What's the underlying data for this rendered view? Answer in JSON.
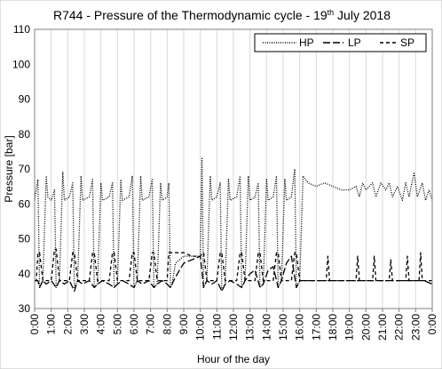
{
  "chart_data": {
    "type": "line",
    "title": "R744 - Pressure of the Thermodynamic cycle - 19",
    "title_superscript": "th",
    "title_suffix": " July 2018",
    "xlabel": "Hour of the day",
    "ylabel": "Pressure [bar]",
    "ylim": [
      30,
      110
    ],
    "xlim": [
      0,
      24
    ],
    "y_ticks": [
      30,
      40,
      50,
      60,
      70,
      80,
      90,
      100,
      110
    ],
    "x_ticks": [
      "0:00",
      "1:00",
      "2:00",
      "3:00",
      "4:00",
      "5:00",
      "6:00",
      "7:00",
      "8:00",
      "9:00",
      "10:00",
      "11:00",
      "12:00",
      "13:00",
      "14:00",
      "15:00",
      "16:00",
      "17:00",
      "18:00",
      "19:00",
      "20:00",
      "21:00",
      "22:00",
      "23:00",
      "0:00"
    ],
    "grid": "vertical",
    "legend_position": "top-right",
    "series": [
      {
        "name": "HP",
        "style": "dotted",
        "values": [
          [
            0.0,
            61
          ],
          [
            0.2,
            67
          ],
          [
            0.3,
            36
          ],
          [
            0.5,
            38
          ],
          [
            0.7,
            68
          ],
          [
            0.8,
            62
          ],
          [
            1.0,
            61
          ],
          [
            1.2,
            64
          ],
          [
            1.3,
            36
          ],
          [
            1.5,
            38
          ],
          [
            1.7,
            69
          ],
          [
            1.8,
            61
          ],
          [
            2.1,
            62
          ],
          [
            2.3,
            66
          ],
          [
            2.4,
            36
          ],
          [
            2.6,
            38
          ],
          [
            2.8,
            68
          ],
          [
            2.9,
            61
          ],
          [
            3.3,
            62
          ],
          [
            3.5,
            67
          ],
          [
            3.6,
            36
          ],
          [
            3.8,
            37
          ],
          [
            4.0,
            66
          ],
          [
            4.1,
            61
          ],
          [
            4.5,
            62
          ],
          [
            4.7,
            66
          ],
          [
            4.8,
            36
          ],
          [
            5.0,
            37
          ],
          [
            5.2,
            67
          ],
          [
            5.3,
            61
          ],
          [
            5.7,
            62
          ],
          [
            5.9,
            68
          ],
          [
            6.0,
            36
          ],
          [
            6.2,
            38
          ],
          [
            6.4,
            68
          ],
          [
            6.5,
            61
          ],
          [
            6.9,
            62
          ],
          [
            7.1,
            67
          ],
          [
            7.2,
            36
          ],
          [
            7.4,
            37
          ],
          [
            7.6,
            66
          ],
          [
            7.7,
            61
          ],
          [
            8.0,
            62
          ],
          [
            8.1,
            66
          ],
          [
            8.2,
            36
          ],
          [
            8.3,
            37
          ],
          [
            8.5,
            43
          ],
          [
            9.0,
            45
          ],
          [
            9.5,
            45
          ],
          [
            10.0,
            45
          ],
          [
            10.1,
            73
          ],
          [
            10.2,
            36
          ],
          [
            10.4,
            38
          ],
          [
            10.6,
            68
          ],
          [
            10.7,
            61
          ],
          [
            11.0,
            62
          ],
          [
            11.2,
            66
          ],
          [
            11.3,
            35
          ],
          [
            11.5,
            37
          ],
          [
            11.7,
            67
          ],
          [
            11.8,
            61
          ],
          [
            12.2,
            62
          ],
          [
            12.4,
            68
          ],
          [
            12.5,
            36
          ],
          [
            12.7,
            38
          ],
          [
            12.9,
            68
          ],
          [
            13.0,
            61
          ],
          [
            13.3,
            62
          ],
          [
            13.5,
            66
          ],
          [
            13.6,
            36
          ],
          [
            13.8,
            37
          ],
          [
            14.0,
            67
          ],
          [
            14.1,
            61
          ],
          [
            14.4,
            62
          ],
          [
            14.6,
            68
          ],
          [
            14.7,
            36
          ],
          [
            14.9,
            38
          ],
          [
            15.1,
            67
          ],
          [
            15.2,
            61
          ],
          [
            15.5,
            62
          ],
          [
            15.7,
            70
          ],
          [
            15.8,
            36
          ],
          [
            16.0,
            38
          ],
          [
            16.2,
            68
          ],
          [
            16.5,
            66
          ],
          [
            17.0,
            65
          ],
          [
            17.5,
            66
          ],
          [
            18.0,
            65
          ],
          [
            18.5,
            64
          ],
          [
            19.0,
            64
          ],
          [
            19.4,
            65
          ],
          [
            19.6,
            62
          ],
          [
            19.8,
            66
          ],
          [
            20.0,
            64
          ],
          [
            20.4,
            66
          ],
          [
            20.6,
            62
          ],
          [
            20.9,
            66
          ],
          [
            21.2,
            64
          ],
          [
            21.4,
            66
          ],
          [
            21.6,
            62
          ],
          [
            21.9,
            65
          ],
          [
            22.2,
            61
          ],
          [
            22.4,
            66
          ],
          [
            22.6,
            62
          ],
          [
            22.9,
            69
          ],
          [
            23.1,
            62
          ],
          [
            23.4,
            66
          ],
          [
            23.6,
            61
          ],
          [
            23.8,
            64
          ],
          [
            24.0,
            61
          ]
        ]
      },
      {
        "name": "LP",
        "style": "long-dash",
        "values": [
          [
            0.0,
            38
          ],
          [
            0.2,
            38
          ],
          [
            0.3,
            36
          ],
          [
            0.5,
            38
          ],
          [
            0.7,
            37
          ],
          [
            1.0,
            38
          ],
          [
            1.3,
            36
          ],
          [
            1.5,
            38
          ],
          [
            1.8,
            37
          ],
          [
            2.1,
            38
          ],
          [
            2.4,
            35
          ],
          [
            2.6,
            38
          ],
          [
            2.9,
            37
          ],
          [
            3.3,
            38
          ],
          [
            3.6,
            36
          ],
          [
            3.8,
            37
          ],
          [
            4.1,
            38
          ],
          [
            4.5,
            37
          ],
          [
            4.8,
            36
          ],
          [
            5.0,
            37
          ],
          [
            5.3,
            38
          ],
          [
            5.7,
            37
          ],
          [
            6.0,
            36
          ],
          [
            6.2,
            38
          ],
          [
            6.5,
            37
          ],
          [
            6.9,
            38
          ],
          [
            7.2,
            36
          ],
          [
            7.4,
            37
          ],
          [
            7.7,
            38
          ],
          [
            8.0,
            37
          ],
          [
            8.2,
            36
          ],
          [
            8.3,
            37
          ],
          [
            8.5,
            39
          ],
          [
            9.0,
            43
          ],
          [
            9.5,
            44
          ],
          [
            10.0,
            45
          ],
          [
            10.2,
            36
          ],
          [
            10.4,
            38
          ],
          [
            10.7,
            37
          ],
          [
            11.0,
            38
          ],
          [
            11.3,
            35
          ],
          [
            11.5,
            37
          ],
          [
            11.8,
            38
          ],
          [
            12.2,
            37
          ],
          [
            12.5,
            36
          ],
          [
            12.7,
            38
          ],
          [
            13.0,
            40
          ],
          [
            13.3,
            41
          ],
          [
            13.6,
            36
          ],
          [
            13.8,
            37
          ],
          [
            14.1,
            41
          ],
          [
            14.4,
            42
          ],
          [
            14.7,
            36
          ],
          [
            14.9,
            38
          ],
          [
            15.2,
            43
          ],
          [
            15.5,
            45
          ],
          [
            15.8,
            36
          ],
          [
            16.0,
            38
          ],
          [
            16.5,
            38
          ],
          [
            17.0,
            38
          ],
          [
            17.5,
            38
          ],
          [
            18.0,
            38
          ],
          [
            18.5,
            38
          ],
          [
            19.0,
            38
          ],
          [
            19.5,
            38
          ],
          [
            20.0,
            38
          ],
          [
            20.5,
            38
          ],
          [
            21.0,
            38
          ],
          [
            21.5,
            38
          ],
          [
            22.0,
            38
          ],
          [
            22.5,
            38
          ],
          [
            23.0,
            38
          ],
          [
            23.5,
            38
          ],
          [
            24.0,
            37
          ]
        ]
      },
      {
        "name": "SP",
        "style": "dashed",
        "values": [
          [
            0.0,
            38
          ],
          [
            0.1,
            38
          ],
          [
            0.2,
            46
          ],
          [
            0.3,
            46
          ],
          [
            0.5,
            38
          ],
          [
            0.7,
            38
          ],
          [
            1.0,
            38
          ],
          [
            1.2,
            47
          ],
          [
            1.3,
            47
          ],
          [
            1.5,
            38
          ],
          [
            1.8,
            38
          ],
          [
            2.1,
            38
          ],
          [
            2.3,
            46
          ],
          [
            2.4,
            46
          ],
          [
            2.6,
            38
          ],
          [
            2.9,
            38
          ],
          [
            3.3,
            38
          ],
          [
            3.5,
            46
          ],
          [
            3.6,
            46
          ],
          [
            3.8,
            38
          ],
          [
            4.1,
            38
          ],
          [
            4.5,
            38
          ],
          [
            4.7,
            46
          ],
          [
            4.8,
            46
          ],
          [
            5.0,
            38
          ],
          [
            5.3,
            38
          ],
          [
            5.7,
            38
          ],
          [
            5.9,
            46
          ],
          [
            6.0,
            46
          ],
          [
            6.2,
            38
          ],
          [
            6.5,
            38
          ],
          [
            6.9,
            38
          ],
          [
            7.1,
            46
          ],
          [
            7.2,
            46
          ],
          [
            7.4,
            38
          ],
          [
            7.7,
            38
          ],
          [
            8.0,
            38
          ],
          [
            8.1,
            46
          ],
          [
            8.2,
            46
          ],
          [
            8.4,
            46
          ],
          [
            9.0,
            46
          ],
          [
            9.5,
            45
          ],
          [
            10.0,
            45
          ],
          [
            10.2,
            46
          ],
          [
            10.4,
            38
          ],
          [
            10.7,
            38
          ],
          [
            11.0,
            38
          ],
          [
            11.2,
            46
          ],
          [
            11.3,
            46
          ],
          [
            11.5,
            38
          ],
          [
            11.8,
            38
          ],
          [
            12.2,
            38
          ],
          [
            12.4,
            46
          ],
          [
            12.5,
            46
          ],
          [
            12.7,
            38
          ],
          [
            13.0,
            38
          ],
          [
            13.3,
            38
          ],
          [
            13.5,
            46
          ],
          [
            13.6,
            46
          ],
          [
            13.8,
            38
          ],
          [
            14.1,
            38
          ],
          [
            14.4,
            38
          ],
          [
            14.6,
            46
          ],
          [
            14.7,
            46
          ],
          [
            14.9,
            38
          ],
          [
            15.2,
            38
          ],
          [
            15.5,
            38
          ],
          [
            15.7,
            46
          ],
          [
            15.8,
            46
          ],
          [
            16.0,
            38
          ],
          [
            16.5,
            38
          ],
          [
            17.0,
            38
          ],
          [
            17.6,
            38
          ],
          [
            17.7,
            45
          ],
          [
            17.8,
            38
          ],
          [
            18.5,
            38
          ],
          [
            19.0,
            38
          ],
          [
            19.4,
            38
          ],
          [
            19.5,
            45
          ],
          [
            19.6,
            38
          ],
          [
            20.4,
            38
          ],
          [
            20.5,
            45
          ],
          [
            20.6,
            38
          ],
          [
            21.4,
            38
          ],
          [
            21.5,
            44
          ],
          [
            21.6,
            38
          ],
          [
            22.4,
            38
          ],
          [
            22.5,
            45
          ],
          [
            22.6,
            38
          ],
          [
            23.2,
            38
          ],
          [
            23.3,
            46
          ],
          [
            23.4,
            38
          ],
          [
            24.0,
            38
          ]
        ]
      }
    ]
  }
}
